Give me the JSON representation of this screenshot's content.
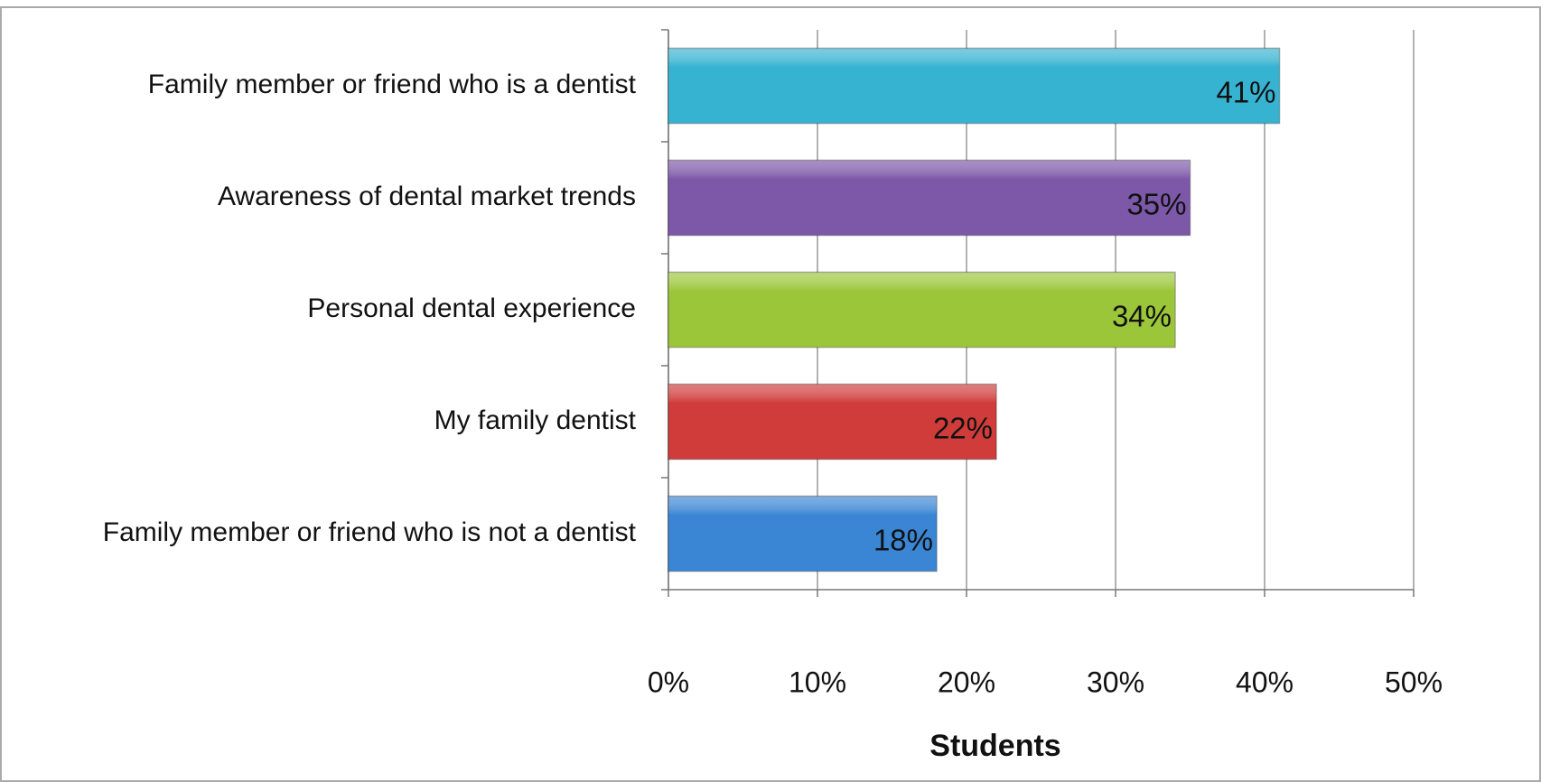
{
  "chart_data": {
    "type": "barh",
    "categories": [
      "Family member or friend who is a dentist",
      "Awareness of dental market trends",
      "Personal dental experience",
      "My family dentist",
      "Family member or friend who is not a dentist"
    ],
    "values": [
      41,
      35,
      34,
      22,
      18
    ],
    "value_labels": [
      "41%",
      "35%",
      "34%",
      "22%",
      "18%"
    ],
    "colors": [
      "#36b3d1",
      "#7d57a8",
      "#9cc63a",
      "#cf3c3a",
      "#3a86d4"
    ],
    "xlabel": "Students",
    "xlim": [
      0,
      50
    ],
    "xticks": [
      {
        "value": 0,
        "label": "0%"
      },
      {
        "value": 10,
        "label": "10%"
      },
      {
        "value": 20,
        "label": "20%"
      },
      {
        "value": 30,
        "label": "30%"
      },
      {
        "value": 40,
        "label": "40%"
      },
      {
        "value": 50,
        "label": "50%"
      }
    ],
    "grid": true
  }
}
